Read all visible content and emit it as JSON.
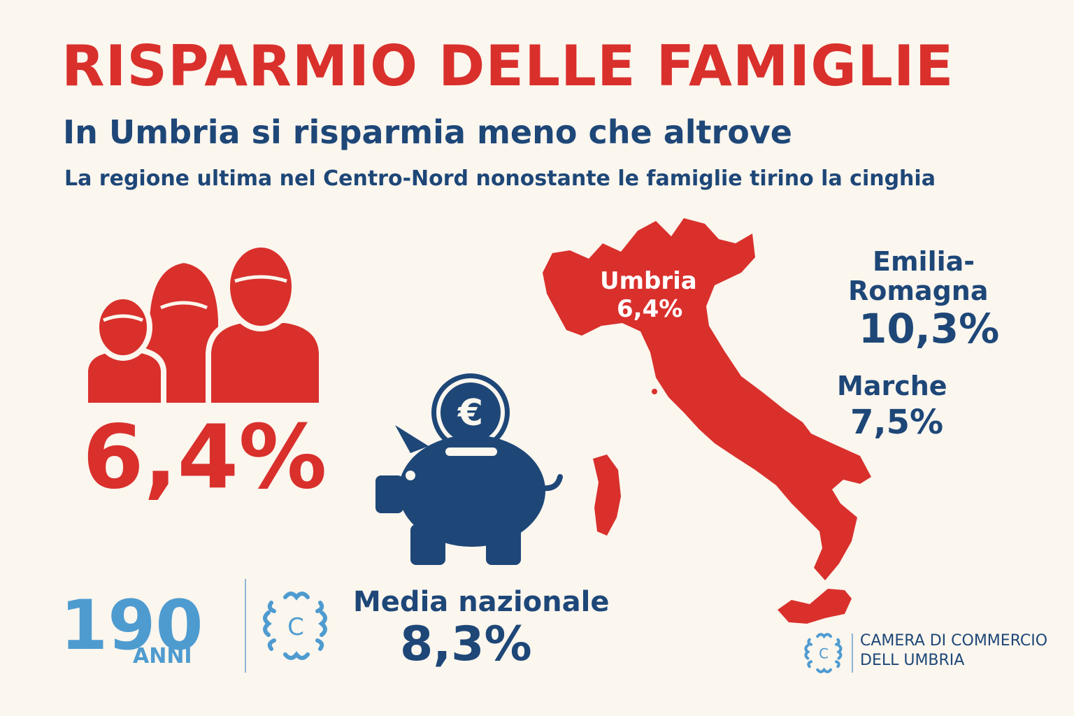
{
  "header": {
    "title": "RISPARMIO DELLE FAMIGLIE",
    "subtitle": "In Umbria si risparmia meno che altrove",
    "tagline": "La regione ultima nel Centro-Nord nonostante le famiglie tirino la cinghia"
  },
  "umbria": {
    "value": "6,4%",
    "map_label": "Umbria",
    "map_value": "6,4%"
  },
  "national": {
    "label": "Media nazionale",
    "value": "8,3%"
  },
  "regions": {
    "emilia_name_line1": "Emilia-",
    "emilia_name_line2": "Romagna",
    "emilia_value": "10,3%",
    "marche_name": "Marche",
    "marche_value": "7,5%"
  },
  "anniversary_logo": {
    "number": "190",
    "word": "ANNI"
  },
  "footer": {
    "org_line1": "CAMERA DI COMMERCIO",
    "org_line2": "DELL UMBRIA",
    "logo_letter": "C"
  },
  "icons": {
    "family": "family-icon",
    "piggy": "piggy-bank-icon",
    "coin": "euro-coin-icon",
    "map": "italy-map"
  },
  "colors": {
    "red": "#d9302c",
    "navy": "#1e4778",
    "light_blue": "#4e9bd0",
    "background": "#fbf6ee"
  }
}
